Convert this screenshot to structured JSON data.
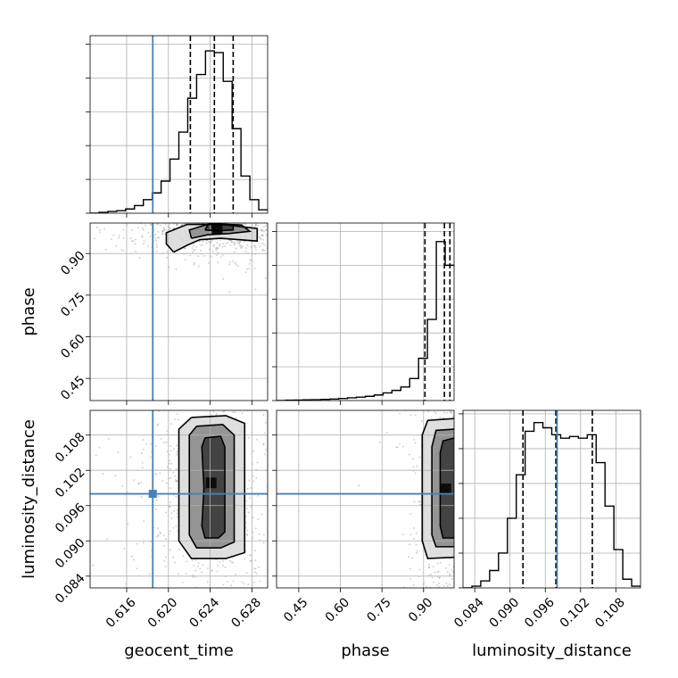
{
  "chart_data": {
    "type": "corner",
    "colors": {
      "truth": "#4682b4",
      "hist": "#000000",
      "grid": "#b0b0b0",
      "points": "#808080"
    },
    "parameters": [
      {
        "name": "geocent_time",
        "label": "geocent_time",
        "range": [
          0.6125,
          0.6295
        ],
        "ticks": [
          0.616,
          0.62,
          0.624,
          0.628
        ],
        "tick_labels": [
          "0.616",
          "0.620",
          "0.624",
          "0.628"
        ],
        "truth": 0.6185,
        "quantiles": [
          0.6221,
          0.6244,
          0.6262
        ]
      },
      {
        "name": "phase",
        "label": "phase",
        "range": [
          0.37,
          1.01
        ],
        "ticks": [
          0.45,
          0.6,
          0.75,
          0.9
        ],
        "tick_labels": [
          "0.45",
          "0.60",
          "0.75",
          "0.90"
        ],
        "truth": null,
        "quantiles": [
          0.905,
          0.975,
          0.995
        ]
      },
      {
        "name": "luminosity_distance",
        "label": "luminosity_distance",
        "range": [
          0.082,
          0.1122
        ],
        "ticks": [
          0.084,
          0.09,
          0.096,
          0.102,
          0.108
        ],
        "tick_labels": [
          "0.084",
          "0.090",
          "0.096",
          "0.102",
          "0.108"
        ],
        "truth": 0.098,
        "quantiles": [
          0.0922,
          0.0978,
          0.104
        ]
      }
    ],
    "histograms": [
      {
        "param": "geocent_time",
        "ymax": 1.05,
        "bin_edges": [
          0.6125,
          0.61335,
          0.6142,
          0.61505,
          0.6159,
          0.61675,
          0.6176,
          0.61845,
          0.6193,
          0.62015,
          0.621,
          0.62185,
          0.6227,
          0.62355,
          0.6244,
          0.62525,
          0.6261,
          0.62695,
          0.6278,
          0.62865,
          0.6295
        ],
        "counts": [
          0.0,
          0.005,
          0.01,
          0.015,
          0.025,
          0.045,
          0.08,
          0.12,
          0.19,
          0.32,
          0.48,
          0.68,
          0.82,
          0.96,
          0.95,
          0.78,
          0.5,
          0.22,
          0.08,
          0.02
        ]
      },
      {
        "param": "phase",
        "ymax": 1.05,
        "bin_edges": [
          0.37,
          0.402,
          0.434,
          0.466,
          0.498,
          0.53,
          0.562,
          0.594,
          0.626,
          0.658,
          0.69,
          0.722,
          0.754,
          0.786,
          0.818,
          0.85,
          0.882,
          0.914,
          0.946,
          0.978,
          1.01
        ],
        "counts": [
          0.0,
          0.002,
          0.003,
          0.004,
          0.005,
          0.007,
          0.009,
          0.012,
          0.016,
          0.02,
          0.025,
          0.033,
          0.045,
          0.06,
          0.08,
          0.13,
          0.25,
          0.48,
          0.94,
          0.8
        ]
      },
      {
        "param": "luminosity_distance",
        "ymax": 1.02,
        "bin_edges": [
          0.082,
          0.08351,
          0.08502,
          0.08653,
          0.08804,
          0.08955,
          0.09106,
          0.09257,
          0.09408,
          0.09559,
          0.0971,
          0.09861,
          0.10012,
          0.10163,
          0.10314,
          0.10465,
          0.10616,
          0.10767,
          0.10918,
          0.11069,
          0.1122
        ],
        "counts": [
          0.0,
          0.01,
          0.04,
          0.1,
          0.2,
          0.4,
          0.65,
          0.9,
          0.95,
          0.92,
          0.88,
          0.86,
          0.87,
          0.86,
          0.88,
          0.72,
          0.47,
          0.22,
          0.05,
          0.01
        ]
      }
    ],
    "pairs": [
      {
        "x": "geocent_time",
        "y": "phase",
        "density_center": [
          0.6248,
          0.985
        ],
        "contours": [
          [
            [
              0.6205,
              0.905
            ],
            [
              0.6218,
              0.93
            ],
            [
              0.623,
              0.95
            ],
            [
              0.625,
              0.955
            ],
            [
              0.6268,
              0.95
            ],
            [
              0.6285,
              0.945
            ],
            [
              0.6285,
              0.99
            ],
            [
              0.6252,
              1.005
            ],
            [
              0.6218,
              1.005
            ],
            [
              0.6198,
              0.975
            ],
            [
              0.6198,
              0.935
            ],
            [
              0.6205,
              0.905
            ]
          ],
          [
            [
              0.6222,
              0.955
            ],
            [
              0.6238,
              0.968
            ],
            [
              0.6258,
              0.972
            ],
            [
              0.6278,
              0.98
            ],
            [
              0.627,
              1.003
            ],
            [
              0.624,
              1.008
            ],
            [
              0.622,
              0.985
            ],
            [
              0.6222,
              0.955
            ]
          ],
          [
            [
              0.6235,
              0.985
            ],
            [
              0.6248,
              0.982
            ],
            [
              0.6262,
              0.985
            ],
            [
              0.6262,
              1.003
            ],
            [
              0.6238,
              1.005
            ],
            [
              0.6235,
              0.985
            ]
          ]
        ]
      },
      {
        "x": "geocent_time",
        "y": "luminosity_distance",
        "density_center": [
          0.6245,
          0.099
        ],
        "truth": [
          0.6185,
          0.098
        ],
        "contours": [
          [
            [
              0.6222,
              0.111
            ],
            [
              0.6255,
              0.1113
            ],
            [
              0.6273,
              0.11
            ],
            [
              0.6273,
              0.088
            ],
            [
              0.6255,
              0.087
            ],
            [
              0.6222,
              0.087
            ],
            [
              0.621,
              0.09
            ],
            [
              0.621,
              0.109
            ],
            [
              0.6222,
              0.111
            ]
          ],
          [
            [
              0.6227,
              0.1095
            ],
            [
              0.6252,
              0.1098
            ],
            [
              0.6263,
              0.108
            ],
            [
              0.6263,
              0.0898
            ],
            [
              0.625,
              0.0888
            ],
            [
              0.6227,
              0.0888
            ],
            [
              0.622,
              0.091
            ],
            [
              0.622,
              0.108
            ],
            [
              0.6227,
              0.1095
            ]
          ],
          [
            [
              0.6235,
              0.1075
            ],
            [
              0.625,
              0.1078
            ],
            [
              0.6254,
              0.106
            ],
            [
              0.6254,
              0.0915
            ],
            [
              0.6248,
              0.0905
            ],
            [
              0.6235,
              0.0905
            ],
            [
              0.6232,
              0.0925
            ],
            [
              0.6234,
              0.099
            ],
            [
              0.6232,
              0.106
            ],
            [
              0.6235,
              0.1075
            ]
          ]
        ]
      },
      {
        "x": "phase",
        "y": "luminosity_distance",
        "density_center": [
          0.995,
          0.099
        ],
        "truth": [
          null,
          0.098
        ],
        "contours": [
          [
            [
              1.01,
              0.1108
            ],
            [
              0.915,
              0.1105
            ],
            [
              0.895,
              0.108
            ],
            [
              0.895,
              0.09
            ],
            [
              0.915,
              0.087
            ],
            [
              1.01,
              0.0872
            ]
          ],
          [
            [
              1.01,
              0.109
            ],
            [
              0.945,
              0.1088
            ],
            [
              0.93,
              0.106
            ],
            [
              0.93,
              0.091
            ],
            [
              0.945,
              0.089
            ],
            [
              1.01,
              0.089
            ]
          ],
          [
            [
              1.01,
              0.1075
            ],
            [
              0.97,
              0.107
            ],
            [
              0.96,
              0.105
            ],
            [
              0.96,
              0.0925
            ],
            [
              0.97,
              0.0905
            ],
            [
              1.01,
              0.0905
            ]
          ]
        ]
      }
    ]
  }
}
